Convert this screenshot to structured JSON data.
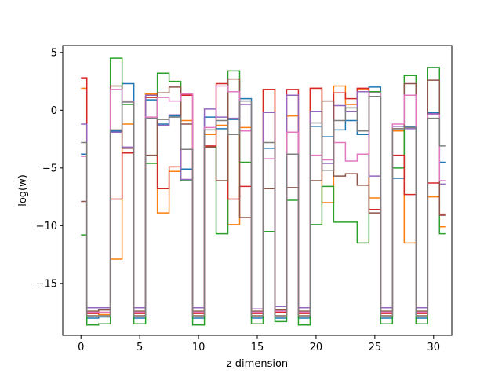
{
  "chart_data": {
    "type": "line",
    "drawstyle": "steps-mid",
    "xlabel": "z dimension",
    "ylabel": "log(w)",
    "xlim": [
      -1.55,
      31.55
    ],
    "ylim": [
      -19.5,
      5.6
    ],
    "xticks": [
      0,
      5,
      10,
      15,
      20,
      25,
      30
    ],
    "yticks": [
      5,
      0,
      -5,
      -10,
      -15
    ],
    "ytick_labels": [
      "5",
      "0",
      "−5",
      "−10",
      "−15"
    ],
    "grid": false,
    "x": [
      0,
      1,
      2,
      3,
      4,
      5,
      6,
      7,
      8,
      9,
      10,
      11,
      12,
      13,
      14,
      15,
      16,
      17,
      18,
      19,
      20,
      21,
      22,
      23,
      24,
      25,
      26,
      27,
      28,
      29,
      30,
      31
    ],
    "series": [
      {
        "color": "#1f77b4",
        "values": [
          -3.8,
          -18.0,
          -17.9,
          -1.8,
          2.3,
          -18.0,
          0.9,
          -1.2,
          -0.5,
          -5.1,
          -18.0,
          -0.6,
          -1.6,
          -0.8,
          1.0,
          -18.0,
          -3.3,
          -18.0,
          -1.9,
          -18.0,
          -1.4,
          -2.3,
          -1.7,
          -0.9,
          -2.1,
          2.0,
          -18.0,
          -5.9,
          -1.4,
          -18.0,
          -0.2,
          -4.5
        ]
      },
      {
        "color": "#ff7f0e",
        "values": [
          1.9,
          -17.8,
          -17.7,
          -12.9,
          -1.2,
          -17.8,
          1.4,
          -8.9,
          -5.3,
          -0.9,
          -17.8,
          -2.1,
          -1.3,
          -9.9,
          -1.5,
          -17.8,
          1.8,
          -17.8,
          -0.5,
          -17.8,
          1.9,
          -8.0,
          2.1,
          0.5,
          1.8,
          -7.6,
          -17.8,
          -1.8,
          -11.5,
          -17.8,
          -7.5,
          -10.1
        ]
      },
      {
        "color": "#2ca02c",
        "values": [
          -10.8,
          -18.6,
          -18.5,
          4.5,
          0.5,
          -18.5,
          -4.6,
          3.2,
          2.5,
          -6.1,
          -18.6,
          -3.2,
          -10.7,
          3.4,
          -4.5,
          -18.5,
          -10.5,
          -18.3,
          -7.8,
          -18.6,
          -9.9,
          -6.6,
          -9.7,
          -9.7,
          -11.5,
          1.6,
          -18.5,
          -5.0,
          3.0,
          -18.5,
          3.7,
          -10.7
        ]
      },
      {
        "color": "#d62728",
        "values": [
          2.8,
          -17.6,
          -17.5,
          -7.7,
          -3.7,
          -17.6,
          1.1,
          -6.8,
          -4.9,
          1.3,
          -17.6,
          -3.1,
          2.3,
          -7.7,
          -6.6,
          -17.6,
          1.8,
          -17.5,
          1.8,
          -17.6,
          1.9,
          -5.2,
          1.5,
          1.0,
          1.9,
          -8.6,
          -17.6,
          -3.9,
          -7.3,
          -17.6,
          -6.3,
          -9.0
        ]
      },
      {
        "color": "#9467bd",
        "values": [
          -1.2,
          -17.1,
          -17.1,
          -1.9,
          -3.2,
          -17.1,
          1.3,
          -1.3,
          -0.4,
          -6.0,
          -17.1,
          0.1,
          -0.6,
          -0.7,
          0.5,
          -17.2,
          -0.2,
          -17.0,
          1.3,
          -17.1,
          -0.1,
          -4.6,
          0.4,
          -0.1,
          1.6,
          -5.7,
          -17.1,
          -1.4,
          -1.6,
          -17.1,
          -0.3,
          -6.4
        ]
      },
      {
        "color": "#8c564b",
        "values": [
          -7.9,
          -17.4,
          -17.3,
          2.1,
          -3.3,
          -17.4,
          -3.9,
          1.5,
          2.0,
          -1.2,
          -17.4,
          -3.2,
          -6.1,
          2.7,
          -9.3,
          -17.4,
          -6.8,
          -17.3,
          -6.7,
          -17.4,
          -6.1,
          0.8,
          -5.7,
          -5.5,
          -6.5,
          -8.9,
          -17.4,
          -1.6,
          2.3,
          -17.4,
          2.6,
          -9.1
        ]
      },
      {
        "color": "#e377c2",
        "values": [
          -4.0,
          -17.5,
          -17.5,
          1.8,
          0.8,
          -17.5,
          -0.6,
          1.1,
          0.8,
          1.4,
          -17.5,
          -1.5,
          2.1,
          1.6,
          -1.8,
          -17.5,
          -4.2,
          -17.4,
          -1.9,
          -17.5,
          -3.9,
          -4.3,
          -2.8,
          -4.4,
          -3.8,
          1.5,
          -17.5,
          -1.2,
          1.3,
          -17.5,
          -0.4,
          -6.1
        ]
      },
      {
        "color": "#7f7f7f",
        "values": [
          -2.8,
          -17.8,
          -17.8,
          -1.7,
          0.7,
          -17.8,
          -0.7,
          -0.8,
          -0.6,
          -3.4,
          -17.8,
          -1.7,
          -0.9,
          -2.1,
          0.8,
          -17.8,
          -2.8,
          -17.8,
          -3.8,
          -17.8,
          -1.1,
          -5.2,
          -0.9,
          0.2,
          -1.8,
          1.2,
          -17.8,
          -1.6,
          -1.5,
          -17.8,
          -0.7,
          -3.1
        ]
      }
    ]
  }
}
